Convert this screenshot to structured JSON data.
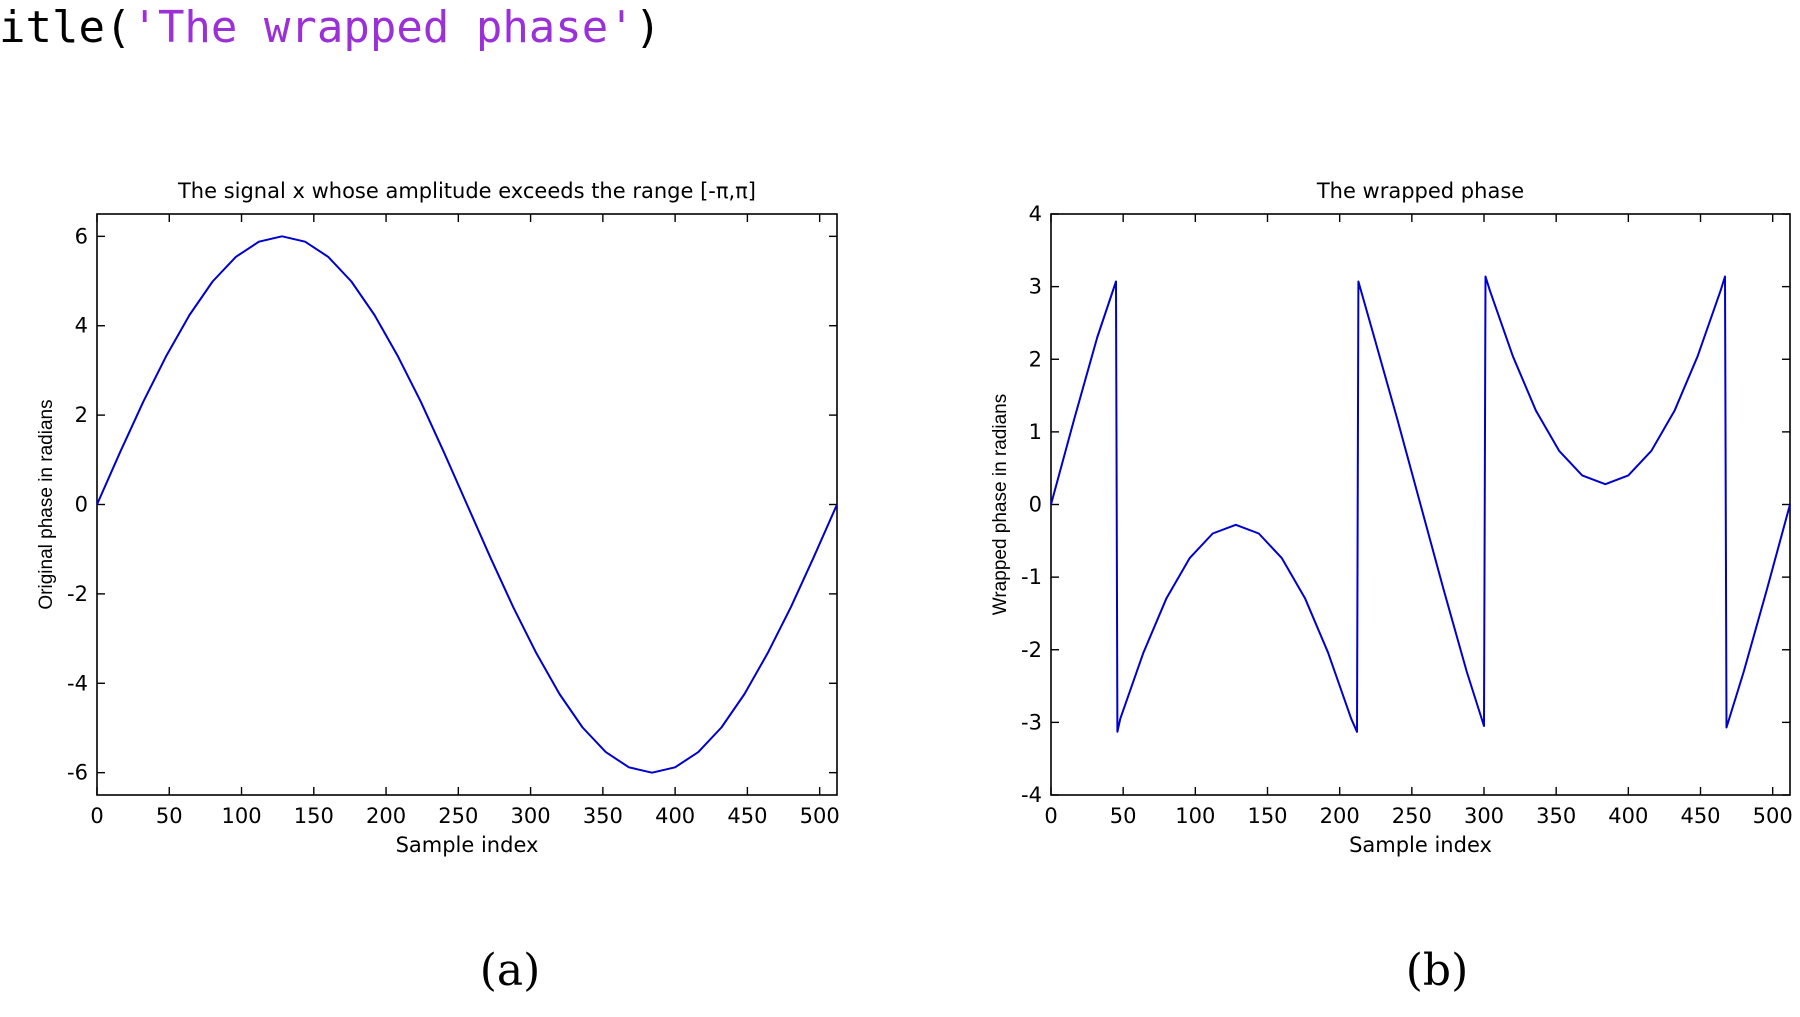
{
  "code_line": {
    "prefix": "itle(",
    "string_literal": "'The wrapped phase'",
    "suffix": ")"
  },
  "colors": {
    "line": "#0000cc",
    "axes": "#000000",
    "code_string": "#9b30d9"
  },
  "chart_data": [
    {
      "type": "line",
      "title": "The signal x whose amplitude exceeds the range [-π,π]",
      "xlabel": "Sample index",
      "ylabel": "Original phase in radians",
      "xlim": [
        0,
        512
      ],
      "ylim": [
        -6.5,
        6.5
      ],
      "xticks": [
        0,
        50,
        100,
        150,
        200,
        250,
        300,
        350,
        400,
        450,
        500
      ],
      "yticks": [
        -6,
        -4,
        -2,
        0,
        2,
        4,
        6
      ],
      "grid": false,
      "series": [
        {
          "x": [
            0,
            16,
            32,
            48,
            64,
            80,
            96,
            112,
            128,
            144,
            160,
            176,
            192,
            208,
            224,
            240,
            256,
            272,
            288,
            304,
            320,
            336,
            352,
            368,
            384,
            400,
            416,
            432,
            448,
            464,
            480,
            496,
            512
          ],
          "values": [
            0.0,
            1.17,
            2.3,
            3.33,
            4.24,
            4.99,
            5.54,
            5.88,
            6.0,
            5.88,
            5.54,
            4.99,
            4.24,
            3.33,
            2.3,
            1.17,
            0.0,
            -1.17,
            -2.3,
            -3.33,
            -4.24,
            -4.99,
            -5.54,
            -5.88,
            -6.0,
            -5.88,
            -5.54,
            -4.99,
            -4.24,
            -3.33,
            -2.3,
            -1.17,
            0.0
          ]
        }
      ],
      "caption": "(a)"
    },
    {
      "type": "line",
      "title": "The wrapped phase",
      "xlabel": "Sample index",
      "ylabel": "Wrapped phase in radians",
      "xlim": [
        0,
        512
      ],
      "ylim": [
        -4,
        4
      ],
      "xticks": [
        0,
        50,
        100,
        150,
        200,
        250,
        300,
        350,
        400,
        450,
        500
      ],
      "yticks": [
        -4,
        -3,
        -2,
        -1,
        0,
        1,
        2,
        3,
        4
      ],
      "grid": false,
      "series": [
        {
          "x": [
            0,
            16,
            32,
            45,
            46,
            48,
            64,
            80,
            96,
            112,
            128,
            144,
            160,
            176,
            192,
            208,
            212,
            213,
            224,
            240,
            256,
            272,
            288,
            300,
            301,
            304,
            320,
            336,
            352,
            368,
            384,
            400,
            416,
            432,
            448,
            464,
            467,
            468,
            480,
            496,
            512
          ],
          "values": [
            0.0,
            1.17,
            2.3,
            3.07,
            -3.13,
            -2.95,
            -2.04,
            -1.29,
            -0.74,
            -0.4,
            -0.28,
            -0.4,
            -0.74,
            -1.29,
            -2.04,
            -2.95,
            -3.13,
            3.07,
            2.3,
            1.17,
            0.0,
            -1.17,
            -2.3,
            -3.05,
            3.14,
            2.95,
            2.04,
            1.29,
            0.74,
            0.4,
            0.28,
            0.4,
            0.74,
            1.29,
            2.04,
            2.95,
            3.14,
            -3.07,
            -2.3,
            -1.17,
            0.0
          ]
        }
      ],
      "caption": "(b)"
    }
  ]
}
